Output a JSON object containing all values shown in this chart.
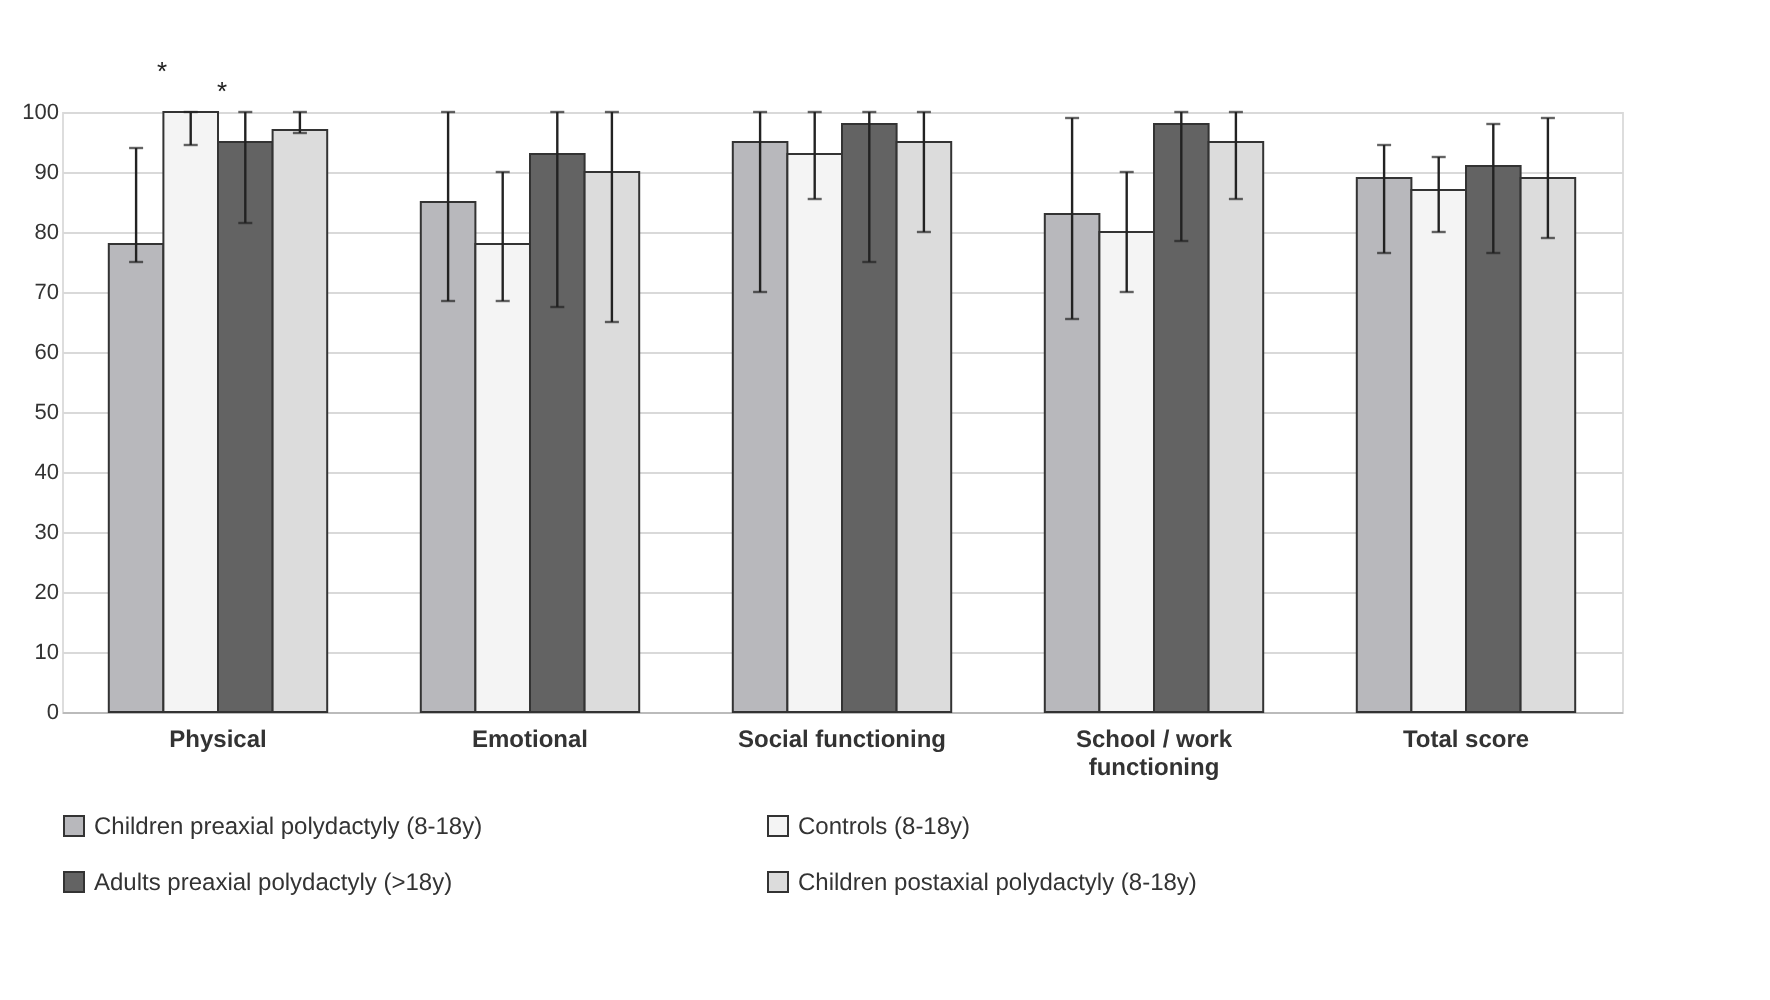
{
  "chart_data": {
    "type": "bar",
    "categories": [
      "Physical",
      "Emotional",
      "Social functioning",
      "School / work functioning",
      "Total score"
    ],
    "series": [
      {
        "name": "Children preaxial polydactyly (8-18y)",
        "color": "#b8b8bc",
        "values": [
          78,
          85,
          95,
          83,
          89
        ],
        "errors": [
          [
            75,
            94
          ],
          [
            68.5,
            100
          ],
          [
            70,
            100
          ],
          [
            65.5,
            99
          ],
          [
            76.5,
            94.5
          ]
        ]
      },
      {
        "name": "Controls (8-18y)",
        "color": "#f4f4f4",
        "values": [
          100,
          78,
          93,
          80,
          87
        ],
        "errors": [
          [
            94.5,
            100
          ],
          [
            68.5,
            90
          ],
          [
            85.5,
            100
          ],
          [
            70,
            90
          ],
          [
            80,
            92.5
          ]
        ]
      },
      {
        "name": "Adults preaxial polydactyly (>18y)",
        "color": "#636363",
        "values": [
          95,
          93,
          98,
          98,
          91
        ],
        "errors": [
          [
            81.5,
            100
          ],
          [
            67.5,
            100
          ],
          [
            75,
            100
          ],
          [
            78.5,
            100
          ],
          [
            76.5,
            98
          ]
        ]
      },
      {
        "name": "Children postaxial polydactyly (8-18y)",
        "color": "#dcdcdc",
        "values": [
          97,
          90,
          95,
          95,
          89
        ],
        "errors": [
          [
            96.5,
            100
          ],
          [
            65,
            100
          ],
          [
            80,
            100
          ],
          [
            85.5,
            100
          ],
          [
            79,
            99
          ]
        ]
      }
    ],
    "ylim": [
      0,
      100
    ],
    "yticks": [
      0,
      10,
      20,
      30,
      40,
      50,
      60,
      70,
      80,
      90,
      100
    ],
    "grid": "y",
    "legend": "bottom",
    "annotations": [
      "*",
      "*"
    ]
  }
}
